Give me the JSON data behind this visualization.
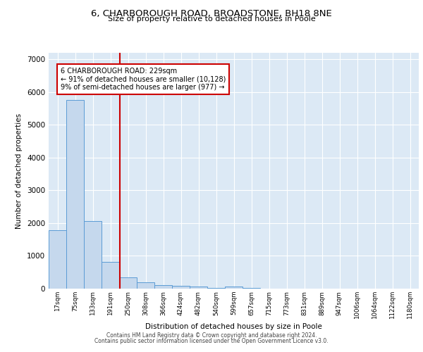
{
  "title1": "6, CHARBOROUGH ROAD, BROADSTONE, BH18 8NE",
  "title2": "Size of property relative to detached houses in Poole",
  "xlabel": "Distribution of detached houses by size in Poole",
  "ylabel": "Number of detached properties",
  "bar_labels": [
    "17sqm",
    "75sqm",
    "133sqm",
    "191sqm",
    "250sqm",
    "308sqm",
    "366sqm",
    "424sqm",
    "482sqm",
    "540sqm",
    "599sqm",
    "657sqm",
    "715sqm",
    "773sqm",
    "831sqm",
    "889sqm",
    "947sqm",
    "1006sqm",
    "1064sqm",
    "1122sqm",
    "1180sqm"
  ],
  "bar_values": [
    1780,
    5750,
    2060,
    820,
    340,
    190,
    110,
    80,
    55,
    30,
    60,
    20,
    5,
    0,
    0,
    0,
    0,
    0,
    0,
    0,
    0
  ],
  "bar_color": "#c5d8ed",
  "bar_edgecolor": "#5b9bd5",
  "vline_x_index": 3.55,
  "vline_color": "#cc0000",
  "annotation_text": "6 CHARBOROUGH ROAD: 229sqm\n← 91% of detached houses are smaller (10,128)\n9% of semi-detached houses are larger (977) →",
  "annotation_box_edgecolor": "#cc0000",
  "annotation_box_facecolor": "white",
  "ylim": [
    0,
    7200
  ],
  "yticks": [
    0,
    1000,
    2000,
    3000,
    4000,
    5000,
    6000,
    7000
  ],
  "plot_bg_color": "#dce9f5",
  "footer1": "Contains HM Land Registry data © Crown copyright and database right 2024.",
  "footer2": "Contains public sector information licensed under the Open Government Licence v3.0."
}
